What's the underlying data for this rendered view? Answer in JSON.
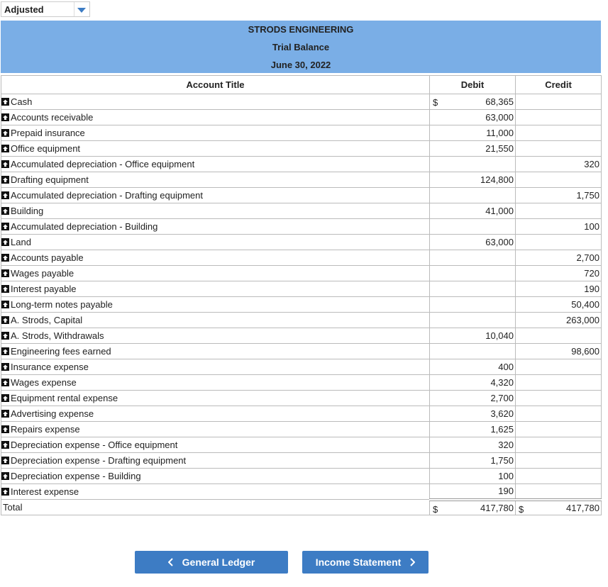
{
  "dropdown": {
    "value": "Adjusted"
  },
  "header": {
    "company": "STRODS ENGINEERING",
    "title": "Trial Balance",
    "date": "June 30, 2022"
  },
  "table": {
    "columns": [
      "Account Title",
      "Debit",
      "Credit"
    ],
    "currency": "$",
    "rows": [
      {
        "title": "Cash",
        "debit": "68,365"
      },
      {
        "title": "Accounts receivable",
        "debit": "63,000"
      },
      {
        "title": "Prepaid insurance",
        "debit": "11,000"
      },
      {
        "title": "Office equipment",
        "debit": "21,550"
      },
      {
        "title": "Accumulated depreciation - Office equipment",
        "credit": "320"
      },
      {
        "title": "Drafting equipment",
        "debit": "124,800"
      },
      {
        "title": "Accumulated depreciation - Drafting equipment",
        "credit": "1,750"
      },
      {
        "title": "Building",
        "debit": "41,000"
      },
      {
        "title": "Accumulated depreciation - Building",
        "credit": "100"
      },
      {
        "title": "Land",
        "debit": "63,000"
      },
      {
        "title": "Accounts payable",
        "credit": "2,700"
      },
      {
        "title": "Wages payable",
        "credit": "720"
      },
      {
        "title": "Interest payable",
        "credit": "190"
      },
      {
        "title": "Long-term notes payable",
        "credit": "50,400"
      },
      {
        "title": "A. Strods, Capital",
        "credit": "263,000"
      },
      {
        "title": "A. Strods, Withdrawals",
        "debit": "10,040"
      },
      {
        "title": "Engineering fees earned",
        "credit": "98,600"
      },
      {
        "title": "Insurance expense",
        "debit": "400"
      },
      {
        "title": "Wages expense",
        "debit": "4,320"
      },
      {
        "title": "Equipment rental expense",
        "debit": "2,700"
      },
      {
        "title": "Advertising expense",
        "debit": "3,620"
      },
      {
        "title": "Repairs expense",
        "debit": "1,625"
      },
      {
        "title": "Depreciation expense - Office equipment",
        "debit": "320"
      },
      {
        "title": "Depreciation expense - Drafting equipment",
        "debit": "1,750"
      },
      {
        "title": "Depreciation expense - Building",
        "debit": "100"
      },
      {
        "title": "Interest expense",
        "debit": "190"
      }
    ],
    "total": {
      "title": "Total",
      "debit": "417,780",
      "credit": "417,780"
    }
  },
  "buttons": {
    "back": "General Ledger",
    "next": "Income Statement"
  }
}
